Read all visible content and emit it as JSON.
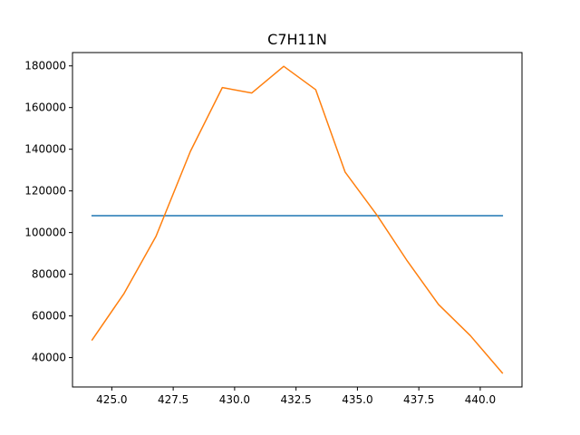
{
  "chart_data": {
    "type": "line",
    "title": "C7H11N",
    "xlabel": "",
    "ylabel": "",
    "xlim": [
      423.4,
      441.7
    ],
    "ylim": [
      25900,
      186400
    ],
    "grid": false,
    "legend": "none",
    "xticks": [
      425.0,
      427.5,
      430.0,
      432.5,
      435.0,
      437.5,
      440.0
    ],
    "xtick_labels": [
      "425.0",
      "427.5",
      "430.0",
      "432.5",
      "435.0",
      "437.5",
      "440.0"
    ],
    "yticks": [
      40000,
      60000,
      80000,
      100000,
      120000,
      140000,
      160000,
      180000
    ],
    "ytick_labels": [
      "40000",
      "60000",
      "80000",
      "100000",
      "120000",
      "140000",
      "160000",
      "180000"
    ],
    "series": [
      {
        "color": "#1f77b4",
        "x": [
          424.2,
          440.9
        ],
        "y": [
          108100,
          108100
        ]
      },
      {
        "color": "#ff7f0e",
        "x": [
          424.2,
          425.5,
          426.8,
          428.2,
          429.5,
          430.7,
          432.0,
          433.3,
          434.5,
          435.8,
          437.0,
          438.3,
          439.6,
          440.9
        ],
        "y": [
          48500,
          70800,
          98200,
          139000,
          169600,
          167000,
          179800,
          168600,
          129000,
          108300,
          86900,
          65500,
          50500,
          32600
        ]
      }
    ]
  }
}
